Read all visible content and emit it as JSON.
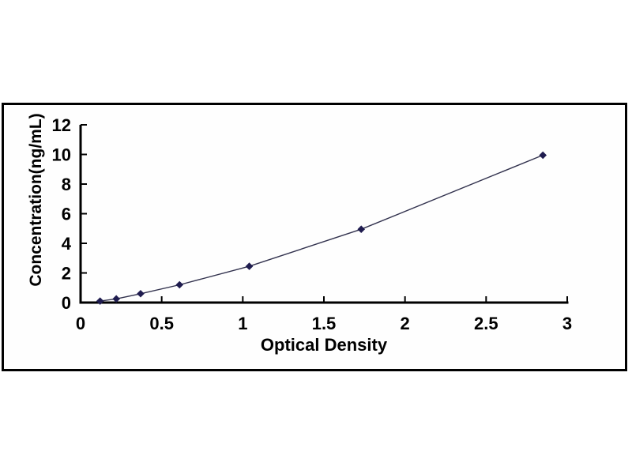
{
  "chart_data": {
    "type": "line",
    "title": "",
    "xlabel": "Optical Density",
    "ylabel": "Concentration(ng/mL)",
    "x": [
      0.12,
      0.22,
      0.37,
      0.61,
      1.04,
      1.73,
      2.85
    ],
    "y": [
      0.1,
      0.25,
      0.6,
      1.2,
      2.45,
      4.95,
      9.95
    ],
    "xlim": [
      0,
      3
    ],
    "ylim": [
      0,
      12
    ],
    "x_ticks": [
      0,
      0.5,
      1,
      1.5,
      2,
      2.5,
      3
    ],
    "x_tick_labels": [
      "0",
      "0.5",
      "1",
      "1.5",
      "2",
      "2.5",
      "3"
    ],
    "y_ticks": [
      0,
      2,
      4,
      6,
      8,
      10,
      12
    ],
    "y_tick_labels": [
      "0",
      "2",
      "4",
      "6",
      "8",
      "10",
      "12"
    ],
    "grid": false,
    "legend": "none",
    "marker": "diamond",
    "marker_color": "#1f1c4f",
    "line_color": "#32324e",
    "axis_color": "#000000",
    "text_color": "#000000",
    "frame_border_color": "#000000",
    "plot_background": "#fefefe"
  }
}
